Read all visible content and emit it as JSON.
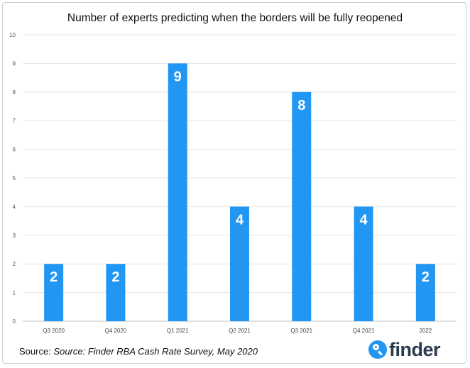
{
  "chart_data": {
    "type": "bar",
    "title": "Number of experts predicting when the borders will be fully reopened",
    "categories": [
      "Q3 2020",
      "Q4 2020",
      "Q1 2021",
      "Q2 2021",
      "Q3 2021",
      "Q4 2021",
      "2022"
    ],
    "values": [
      2,
      2,
      9,
      4,
      8,
      4,
      2
    ],
    "data_labels": [
      "2",
      "2",
      "9",
      "4",
      "8",
      "4",
      "2"
    ],
    "ylim": [
      0,
      10
    ],
    "yticks": [
      "0",
      "1",
      "2",
      "3",
      "4",
      "5",
      "6",
      "7",
      "8",
      "9",
      "10"
    ],
    "xlabel": "",
    "ylabel": "",
    "grid": true,
    "bar_color": "#2196F3"
  },
  "source": {
    "prefix": "Source: ",
    "text": "Source: Finder RBA Cash Rate Survey, May 2020"
  },
  "logo": {
    "text": "finder",
    "icon": "magnifier-icon",
    "color": "#2196F3"
  }
}
